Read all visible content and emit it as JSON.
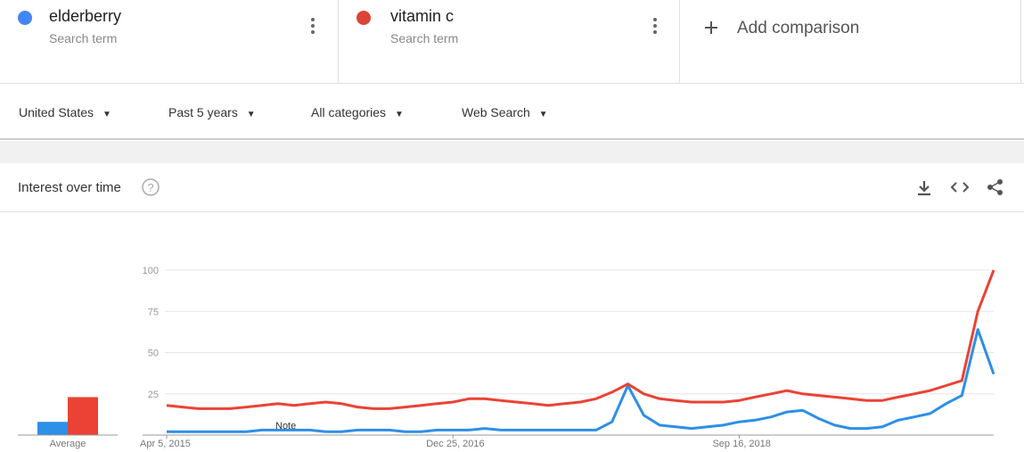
{
  "terms": [
    {
      "name": "elderberry",
      "sub": "Search term"
    },
    {
      "name": "vitamin c",
      "sub": "Search term"
    }
  ],
  "add_comparison": "Add comparison",
  "filters": [
    "United States",
    "Past 5 years",
    "All categories",
    "Web Search"
  ],
  "card_title": "Interest over time",
  "chart_data": {
    "type": "line",
    "categories": [
      "Apr 5, 2015",
      null,
      null,
      null,
      null,
      null,
      null,
      null,
      null,
      null,
      null,
      null,
      null,
      null,
      null,
      null,
      null,
      null,
      "Dec 25, 2016",
      null,
      null,
      null,
      null,
      null,
      null,
      null,
      null,
      null,
      null,
      null,
      null,
      null,
      null,
      null,
      null,
      null,
      "Sep 16, 2018",
      null,
      null,
      null,
      null,
      null,
      null,
      null,
      null,
      null,
      null,
      null,
      null,
      null,
      null,
      null,
      null
    ],
    "series": [
      {
        "name": "elderberry",
        "color": "#2e8fe6",
        "average": 8,
        "values": [
          2,
          2,
          2,
          2,
          2,
          2,
          3,
          3,
          3,
          3,
          2,
          2,
          3,
          3,
          3,
          2,
          2,
          3,
          3,
          3,
          4,
          3,
          3,
          3,
          3,
          3,
          3,
          3,
          8,
          30,
          12,
          6,
          5,
          4,
          5,
          6,
          8,
          9,
          11,
          14,
          15,
          10,
          6,
          4,
          4,
          5,
          9,
          11,
          13,
          19,
          24,
          64,
          37
        ]
      },
      {
        "name": "vitamin c",
        "color": "#ea4335",
        "average": 23,
        "values": [
          18,
          17,
          16,
          16,
          16,
          17,
          18,
          19,
          18,
          19,
          20,
          19,
          17,
          16,
          16,
          17,
          18,
          19,
          20,
          22,
          22,
          21,
          20,
          19,
          18,
          19,
          20,
          22,
          26,
          31,
          25,
          22,
          21,
          20,
          20,
          20,
          21,
          23,
          25,
          27,
          25,
          24,
          23,
          22,
          21,
          21,
          23,
          25,
          27,
          30,
          33,
          75,
          100
        ]
      }
    ],
    "average_label": "Average",
    "annotation": "Note",
    "ylim": [
      0,
      100
    ],
    "yticks": [
      25,
      50,
      75,
      100
    ],
    "grid": true
  }
}
